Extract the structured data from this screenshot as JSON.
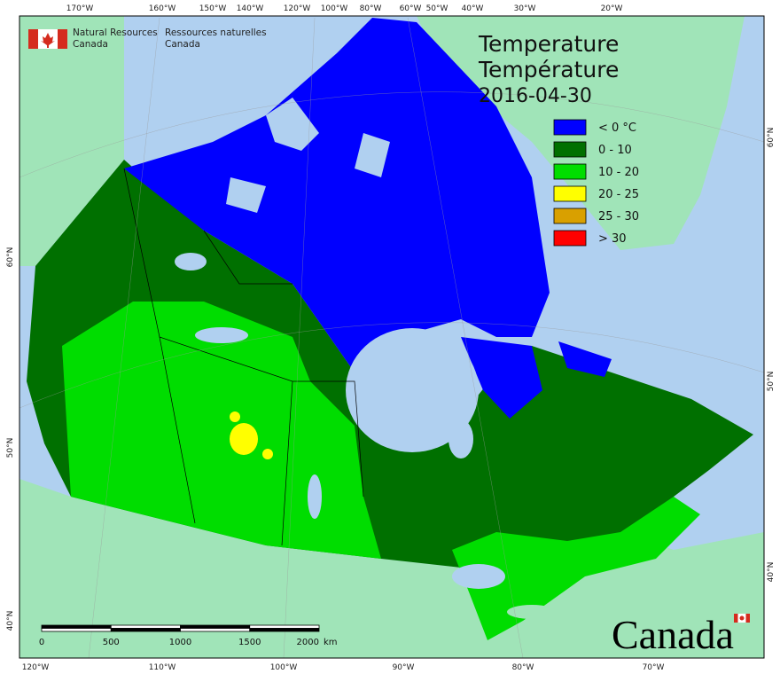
{
  "agency": {
    "en": [
      "Natural Resources",
      "Canada"
    ],
    "fr": [
      "Ressources naturelles",
      "Canada"
    ]
  },
  "title": [
    "Temperature",
    "Température"
  ],
  "date": "2016-04-30",
  "legend": [
    {
      "label": "< 0 °C",
      "color": "#0000ff"
    },
    {
      "label": "0 - 10",
      "color": "#007000"
    },
    {
      "label": "10 - 20",
      "color": "#00dd00"
    },
    {
      "label": "20 - 25",
      "color": "#ffff00"
    },
    {
      "label": "25 - 30",
      "color": "#d9a000"
    },
    {
      "label": "> 30",
      "color": "#ff0000"
    }
  ],
  "graticule": {
    "top": [
      "170°W",
      "160°W",
      "150°W",
      "140°W",
      "120°W",
      "100°W",
      "80°W",
      "60°W",
      "50°W",
      "40°W",
      "30°W",
      "20°W"
    ],
    "bottom": [
      "120°W",
      "110°W",
      "100°W",
      "90°W",
      "80°W",
      "70°W"
    ],
    "left": [
      "60°N",
      "50°N",
      "40°N"
    ],
    "right": [
      "60°N",
      "50°N",
      "40°N"
    ]
  },
  "scale_bar": {
    "labels": [
      "0",
      "500",
      "1000",
      "1500",
      "2000"
    ],
    "unit": "km"
  },
  "wordmark": "Canada"
}
